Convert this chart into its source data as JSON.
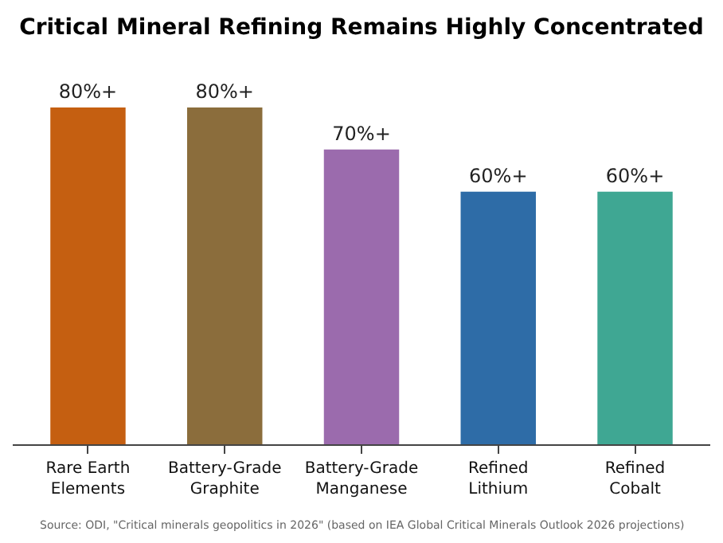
{
  "chart_data": {
    "type": "bar",
    "title": "Critical Mineral Refining Remains Highly Concentrated",
    "categories": [
      "Rare Earth Elements",
      "Battery-Grade Graphite",
      "Battery-Grade Manganese",
      "Refined Lithium",
      "Refined Cobalt"
    ],
    "values": [
      80,
      80,
      70,
      60,
      60
    ],
    "value_labels": [
      "80%+",
      "80%+",
      "70%+",
      "60%+",
      "60%+"
    ],
    "colors": [
      "#c55f11",
      "#8b6d3c",
      "#9b6bad",
      "#2e6ca7",
      "#3fa793"
    ],
    "annotations": [
      "Source: ODI, \"Critical minerals geopolitics in 2026\" (based on IEA Global Critical Minerals Outlook 2026 projections)"
    ]
  }
}
